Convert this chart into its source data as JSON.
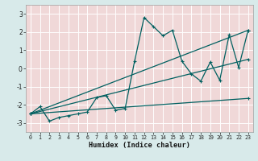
{
  "xlabel": "Humidex (Indice chaleur)",
  "xlim": [
    -0.5,
    23.5
  ],
  "ylim": [
    -3.5,
    3.5
  ],
  "xtick_vals": [
    0,
    1,
    2,
    3,
    4,
    5,
    6,
    7,
    8,
    9,
    10,
    11,
    12,
    13,
    14,
    15,
    16,
    17,
    18,
    19,
    20,
    21,
    22,
    23
  ],
  "ytick_vals": [
    -3,
    -2,
    -1,
    0,
    1,
    2,
    3
  ],
  "bg_color": "#d8eaea",
  "grid_bg_color": "#f0d8d8",
  "grid_color": "#ffffff",
  "line_color": "#006060",
  "line1_x": [
    0,
    1,
    2,
    3,
    4,
    5,
    6,
    7,
    8,
    9,
    10,
    11,
    12,
    13,
    14,
    15,
    16,
    17,
    18,
    19,
    20,
    21,
    22,
    23
  ],
  "line1_y": [
    -2.5,
    -2.1,
    -2.9,
    -2.7,
    -2.6,
    -2.5,
    -2.4,
    -1.6,
    -1.5,
    -2.3,
    -2.2,
    0.4,
    2.8,
    2.3,
    1.8,
    2.1,
    0.4,
    -0.3,
    -0.7,
    0.35,
    -0.65,
    1.85,
    0.05,
    2.1
  ],
  "line2_x": [
    0,
    23
  ],
  "line2_y": [
    -2.5,
    2.1
  ],
  "line3_x": [
    0,
    23
  ],
  "line3_y": [
    -2.5,
    -1.65
  ],
  "line4_x": [
    0,
    23
  ],
  "line4_y": [
    -2.5,
    0.5
  ]
}
